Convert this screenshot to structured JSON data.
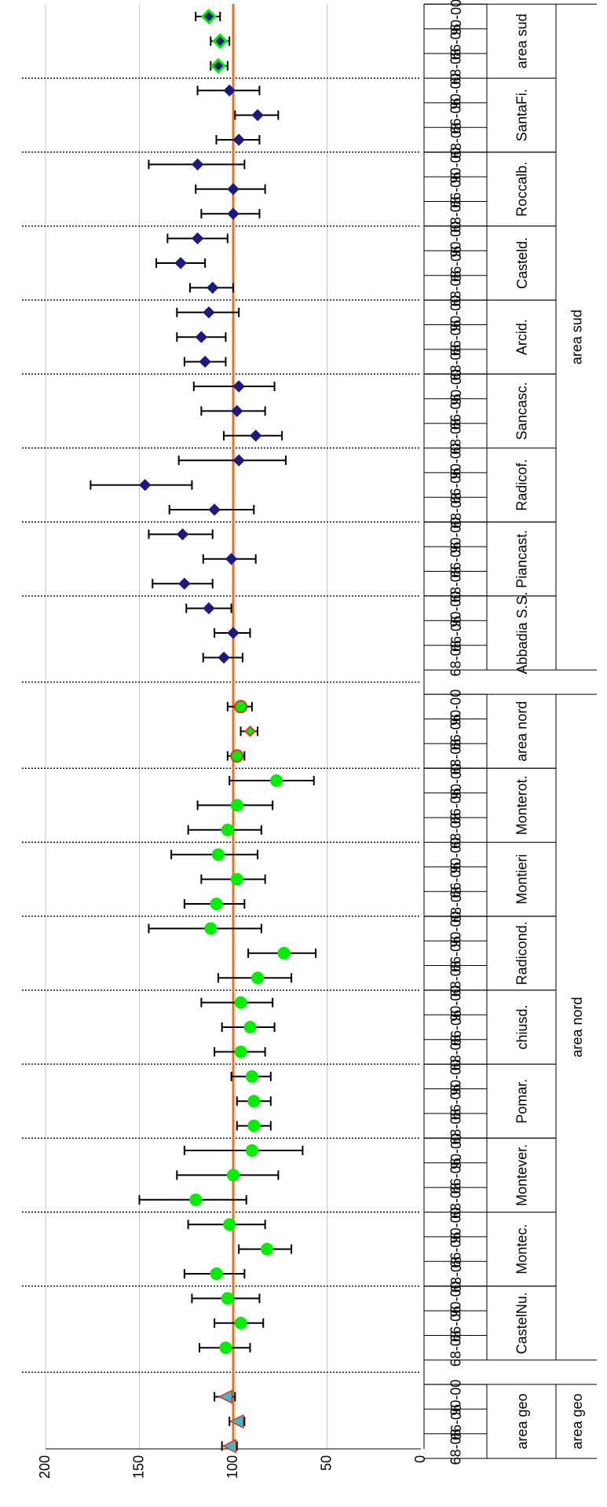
{
  "chart_data": {
    "type": "scatter",
    "orientation": "rotated",
    "reference_line": 100,
    "value_axis": {
      "ylim": [
        0,
        200
      ],
      "ticks": [
        "200",
        "150",
        "100",
        "50",
        "0"
      ],
      "grid": true
    },
    "colors": {
      "reference": "#E8701E",
      "nord": "#00EE00",
      "sud": "#1A1A80",
      "aggregate_sud_fill": "#1A1A80",
      "aggregate_sud_edge": "#00EE00",
      "aggregate_nord_fill": "#00EE00",
      "aggregate_nord_edge": "#D33A20",
      "geo_fill": "#45B6C8",
      "geo_edge": "#D33A20"
    },
    "groups": [
      {
        "macro": "area sud",
        "name": "area sud",
        "marker": "diamond-agg-sud",
        "points": [
          {
            "period": "90-00",
            "value": 113,
            "low": 107,
            "high": 120
          },
          {
            "period": "66-06",
            "value": 107,
            "low": 102,
            "high": 112
          },
          {
            "period": "68-08",
            "value": 108,
            "low": 103,
            "high": 112
          }
        ]
      },
      {
        "macro": "area sud",
        "name": "SantaFi.",
        "marker": "diamond-sud",
        "points": [
          {
            "period": "90-00",
            "value": 102,
            "low": 86,
            "high": 119
          },
          {
            "period": "66-06",
            "value": 87,
            "low": 76,
            "high": 99
          },
          {
            "period": "68-08",
            "value": 97,
            "low": 86,
            "high": 109
          }
        ]
      },
      {
        "macro": "area sud",
        "name": "Roccalb.",
        "marker": "diamond-sud",
        "points": [
          {
            "period": "90-00",
            "value": 119,
            "low": 94,
            "high": 145
          },
          {
            "period": "66-06",
            "value": 100,
            "low": 83,
            "high": 120
          },
          {
            "period": "68-08",
            "value": 100,
            "low": 86,
            "high": 117
          }
        ]
      },
      {
        "macro": "area sud",
        "name": "Casteld.",
        "marker": "diamond-sud",
        "points": [
          {
            "period": "90-00",
            "value": 119,
            "low": 103,
            "high": 135
          },
          {
            "period": "66-06",
            "value": 128,
            "low": 115,
            "high": 141
          },
          {
            "period": "68-08",
            "value": 111,
            "low": 100,
            "high": 123
          }
        ]
      },
      {
        "macro": "area sud",
        "name": "Arcid.",
        "marker": "diamond-sud",
        "points": [
          {
            "period": "90-00",
            "value": 113,
            "low": 97,
            "high": 130
          },
          {
            "period": "66-06",
            "value": 117,
            "low": 104,
            "high": 130
          },
          {
            "period": "68-08",
            "value": 115,
            "low": 104,
            "high": 126
          }
        ]
      },
      {
        "macro": "area sud",
        "name": "Sancasc.",
        "marker": "diamond-sud",
        "points": [
          {
            "period": "90-00",
            "value": 97,
            "low": 78,
            "high": 121
          },
          {
            "period": "66-06",
            "value": 98,
            "low": 83,
            "high": 117
          },
          {
            "period": "68-08",
            "value": 88,
            "low": 74,
            "high": 105
          }
        ]
      },
      {
        "macro": "area sud",
        "name": "Radicof.",
        "marker": "diamond-sud",
        "points": [
          {
            "period": "90-00",
            "value": 97,
            "low": 72,
            "high": 129
          },
          {
            "period": "66-06",
            "value": 147,
            "low": 122,
            "high": 176
          },
          {
            "period": "68-08",
            "value": 110,
            "low": 89,
            "high": 134
          }
        ]
      },
      {
        "macro": "area sud",
        "name": "Piancast.",
        "marker": "diamond-sud",
        "points": [
          {
            "period": "90-00",
            "value": 127,
            "low": 111,
            "high": 145
          },
          {
            "period": "66-06",
            "value": 101,
            "low": 88,
            "high": 116
          },
          {
            "period": "68-08",
            "value": 126,
            "low": 111,
            "high": 143
          }
        ]
      },
      {
        "macro": "area sud",
        "name": "Abbadia S.S.",
        "marker": "diamond-sud",
        "points": [
          {
            "period": "90-00",
            "value": 113,
            "low": 101,
            "high": 125
          },
          {
            "period": "66-06",
            "value": 100,
            "low": 91,
            "high": 110
          },
          {
            "period": "68-08",
            "value": 105,
            "low": 95,
            "high": 116
          }
        ]
      },
      {
        "macro": "area nord",
        "name": "area nord",
        "marker": "circle-agg-nord",
        "points": [
          {
            "period": "90-00",
            "value": 96,
            "low": 90,
            "high": 103
          },
          {
            "period": "66-06",
            "value": 91,
            "low": 87,
            "high": 96
          },
          {
            "period": "68-08",
            "value": 98,
            "low": 94,
            "high": 103
          }
        ]
      },
      {
        "macro": "area nord",
        "name": "Monterot.",
        "marker": "circle-nord",
        "points": [
          {
            "period": "90-00",
            "value": 77,
            "low": 57,
            "high": 102
          },
          {
            "period": "66-06",
            "value": 98,
            "low": 79,
            "high": 119
          },
          {
            "period": "68-08",
            "value": 103,
            "low": 85,
            "high": 124
          }
        ]
      },
      {
        "macro": "area nord",
        "name": "Montieri",
        "marker": "circle-nord",
        "points": [
          {
            "period": "90-00",
            "value": 108,
            "low": 87,
            "high": 133
          },
          {
            "period": "66-06",
            "value": 98,
            "low": 83,
            "high": 117
          },
          {
            "period": "68-08",
            "value": 109,
            "low": 94,
            "high": 126
          }
        ]
      },
      {
        "macro": "area nord",
        "name": "Radicond.",
        "marker": "circle-nord",
        "points": [
          {
            "period": "90-00",
            "value": 112,
            "low": 85,
            "high": 145
          },
          {
            "period": "66-06",
            "value": 73,
            "low": 56,
            "high": 92
          },
          {
            "period": "68-08",
            "value": 87,
            "low": 69,
            "high": 108
          }
        ]
      },
      {
        "macro": "area nord",
        "name": "chiusd.",
        "marker": "circle-nord",
        "points": [
          {
            "period": "90-00",
            "value": 96,
            "low": 79,
            "high": 117
          },
          {
            "period": "66-06",
            "value": 91,
            "low": 78,
            "high": 106
          },
          {
            "period": "68-08",
            "value": 96,
            "low": 83,
            "high": 110
          }
        ]
      },
      {
        "macro": "area nord",
        "name": "Pomar.",
        "marker": "circle-nord",
        "points": [
          {
            "period": "90-00",
            "value": 90,
            "low": 80,
            "high": 101
          },
          {
            "period": "66-06",
            "value": 89,
            "low": 80,
            "high": 98
          },
          {
            "period": "68-08",
            "value": 89,
            "low": 80,
            "high": 98
          }
        ]
      },
      {
        "macro": "area nord",
        "name": "Montever.",
        "marker": "circle-nord",
        "points": [
          {
            "period": "90-00",
            "value": 90,
            "low": 63,
            "high": 126
          },
          {
            "period": "66-06",
            "value": 100,
            "low": 76,
            "high": 130
          },
          {
            "period": "68-08",
            "value": 120,
            "low": 93,
            "high": 150
          }
        ]
      },
      {
        "macro": "area nord",
        "name": "Montec.",
        "marker": "circle-nord",
        "points": [
          {
            "period": "90-00",
            "value": 102,
            "low": 83,
            "high": 124
          },
          {
            "period": "66-06",
            "value": 82,
            "low": 69,
            "high": 97
          },
          {
            "period": "68-08",
            "value": 109,
            "low": 94,
            "high": 126
          }
        ]
      },
      {
        "macro": "area nord",
        "name": "CastelNu.",
        "marker": "circle-nord",
        "points": [
          {
            "period": "90-00",
            "value": 103,
            "low": 86,
            "high": 122
          },
          {
            "period": "66-06",
            "value": 96,
            "low": 84,
            "high": 110
          },
          {
            "period": "68-08",
            "value": 104,
            "low": 91,
            "high": 118
          }
        ]
      },
      {
        "macro": "area geo",
        "name": "area geo",
        "marker": "triangle-geo",
        "points": [
          {
            "period": "90-00",
            "value": 104,
            "low": 99,
            "high": 110
          },
          {
            "period": "66-06",
            "value": 98,
            "low": 94,
            "high": 102
          },
          {
            "period": "68-08",
            "value": 102,
            "low": 98,
            "high": 106
          }
        ]
      }
    ],
    "macro_groups": [
      {
        "label": "area sud",
        "groups": 9
      },
      {
        "label": "area nord",
        "groups": 9
      },
      {
        "label": "area geo",
        "groups": 1
      }
    ]
  }
}
